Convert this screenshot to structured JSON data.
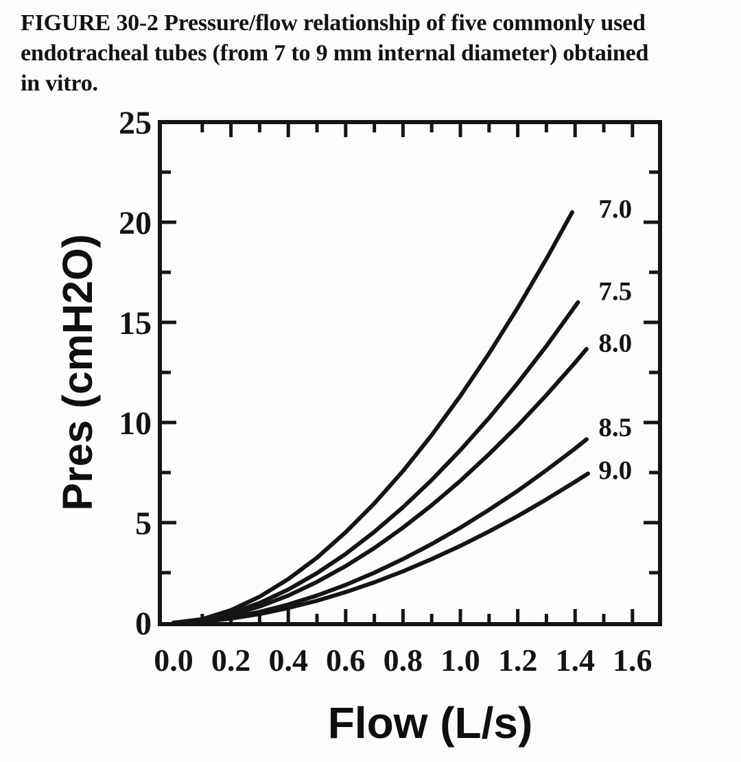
{
  "figure": {
    "caption_lines": [
      "FIGURE 30-2 Pressure/flow relationship of five commonly used",
      "endotracheal tubes (from 7 to 9 mm internal diameter) obtained",
      "in vitro."
    ]
  },
  "colors": {
    "paper": "#fcfcfa",
    "ink": "#141414"
  },
  "chart_data": {
    "type": "line",
    "title": "",
    "xlabel": "Flow (L/s)",
    "ylabel": "Pres (cmH2O)",
    "xlim": [
      0,
      1.7
    ],
    "ylim": [
      0,
      25
    ],
    "grid": false,
    "legend_position": "curve-end labels at right side of plot",
    "series_note": "curve labels give endotracheal tube internal diameter in mm",
    "x_tick_values": [
      0,
      0.2,
      0.4,
      0.6,
      0.8,
      1.0,
      1.2,
      1.4,
      1.6
    ],
    "x_tick_labels": [
      "0.0",
      "0.2",
      "0.4",
      "0.6",
      "0.8",
      "1.0",
      "1.2",
      "1.4",
      "1.6"
    ],
    "x_minor_tick_step": 0.1,
    "y_tick_values": [
      0,
      5,
      10,
      15,
      20,
      25
    ],
    "y_tick_labels": [
      "0",
      "5",
      "10",
      "15",
      "20",
      "25"
    ],
    "y_minor_tick_step": 2.5,
    "series": [
      {
        "name": "7.0",
        "label_x": 1.54,
        "label_y": 20.7,
        "points": [
          [
            0,
            0
          ],
          [
            0.1,
            0.18
          ],
          [
            0.2,
            0.63
          ],
          [
            0.3,
            1.3
          ],
          [
            0.4,
            2.18
          ],
          [
            0.5,
            3.25
          ],
          [
            0.6,
            4.52
          ],
          [
            0.7,
            5.96
          ],
          [
            0.8,
            7.58
          ],
          [
            0.9,
            9.37
          ],
          [
            1.0,
            11.33
          ],
          [
            1.1,
            13.45
          ],
          [
            1.2,
            15.73
          ],
          [
            1.3,
            18.17
          ],
          [
            1.39,
            20.5
          ]
        ]
      },
      {
        "name": "7.5",
        "label_x": 1.54,
        "label_y": 16.6,
        "points": [
          [
            0,
            0
          ],
          [
            0.1,
            0.14
          ],
          [
            0.2,
            0.48
          ],
          [
            0.3,
            0.99
          ],
          [
            0.4,
            1.66
          ],
          [
            0.5,
            2.48
          ],
          [
            0.6,
            3.44
          ],
          [
            0.7,
            4.54
          ],
          [
            0.8,
            5.77
          ],
          [
            0.9,
            7.13
          ],
          [
            1.0,
            8.62
          ],
          [
            1.1,
            10.23
          ],
          [
            1.2,
            11.97
          ],
          [
            1.3,
            13.82
          ],
          [
            1.41,
            16.0
          ]
        ]
      },
      {
        "name": "8.0",
        "label_x": 1.54,
        "label_y": 14.0,
        "points": [
          [
            0,
            0
          ],
          [
            0.1,
            0.11
          ],
          [
            0.2,
            0.39
          ],
          [
            0.3,
            0.81
          ],
          [
            0.4,
            1.36
          ],
          [
            0.5,
            2.04
          ],
          [
            0.6,
            2.83
          ],
          [
            0.7,
            3.73
          ],
          [
            0.8,
            4.75
          ],
          [
            0.9,
            5.87
          ],
          [
            1.0,
            7.09
          ],
          [
            1.1,
            8.42
          ],
          [
            1.2,
            9.84
          ],
          [
            1.3,
            11.37
          ],
          [
            1.4,
            12.99
          ],
          [
            1.44,
            13.67
          ]
        ]
      },
      {
        "name": "8.5",
        "label_x": 1.54,
        "label_y": 9.8,
        "points": [
          [
            0,
            0
          ],
          [
            0.1,
            0.08
          ],
          [
            0.2,
            0.26
          ],
          [
            0.3,
            0.54
          ],
          [
            0.4,
            0.91
          ],
          [
            0.5,
            1.36
          ],
          [
            0.6,
            1.89
          ],
          [
            0.7,
            2.5
          ],
          [
            0.8,
            3.18
          ],
          [
            0.9,
            3.93
          ],
          [
            1.0,
            4.75
          ],
          [
            1.1,
            5.64
          ],
          [
            1.2,
            6.59
          ],
          [
            1.3,
            7.62
          ],
          [
            1.4,
            8.7
          ],
          [
            1.44,
            9.16
          ]
        ]
      },
      {
        "name": "9.0",
        "label_x": 1.54,
        "label_y": 7.65,
        "points": [
          [
            0,
            0
          ],
          [
            0.1,
            0.06
          ],
          [
            0.2,
            0.21
          ],
          [
            0.3,
            0.44
          ],
          [
            0.4,
            0.74
          ],
          [
            0.5,
            1.1
          ],
          [
            0.6,
            1.53
          ],
          [
            0.7,
            2.02
          ],
          [
            0.8,
            2.57
          ],
          [
            0.9,
            3.18
          ],
          [
            1.0,
            3.84
          ],
          [
            1.1,
            4.56
          ],
          [
            1.2,
            5.33
          ],
          [
            1.3,
            6.16
          ],
          [
            1.4,
            7.04
          ],
          [
            1.445,
            7.45
          ]
        ]
      }
    ]
  }
}
